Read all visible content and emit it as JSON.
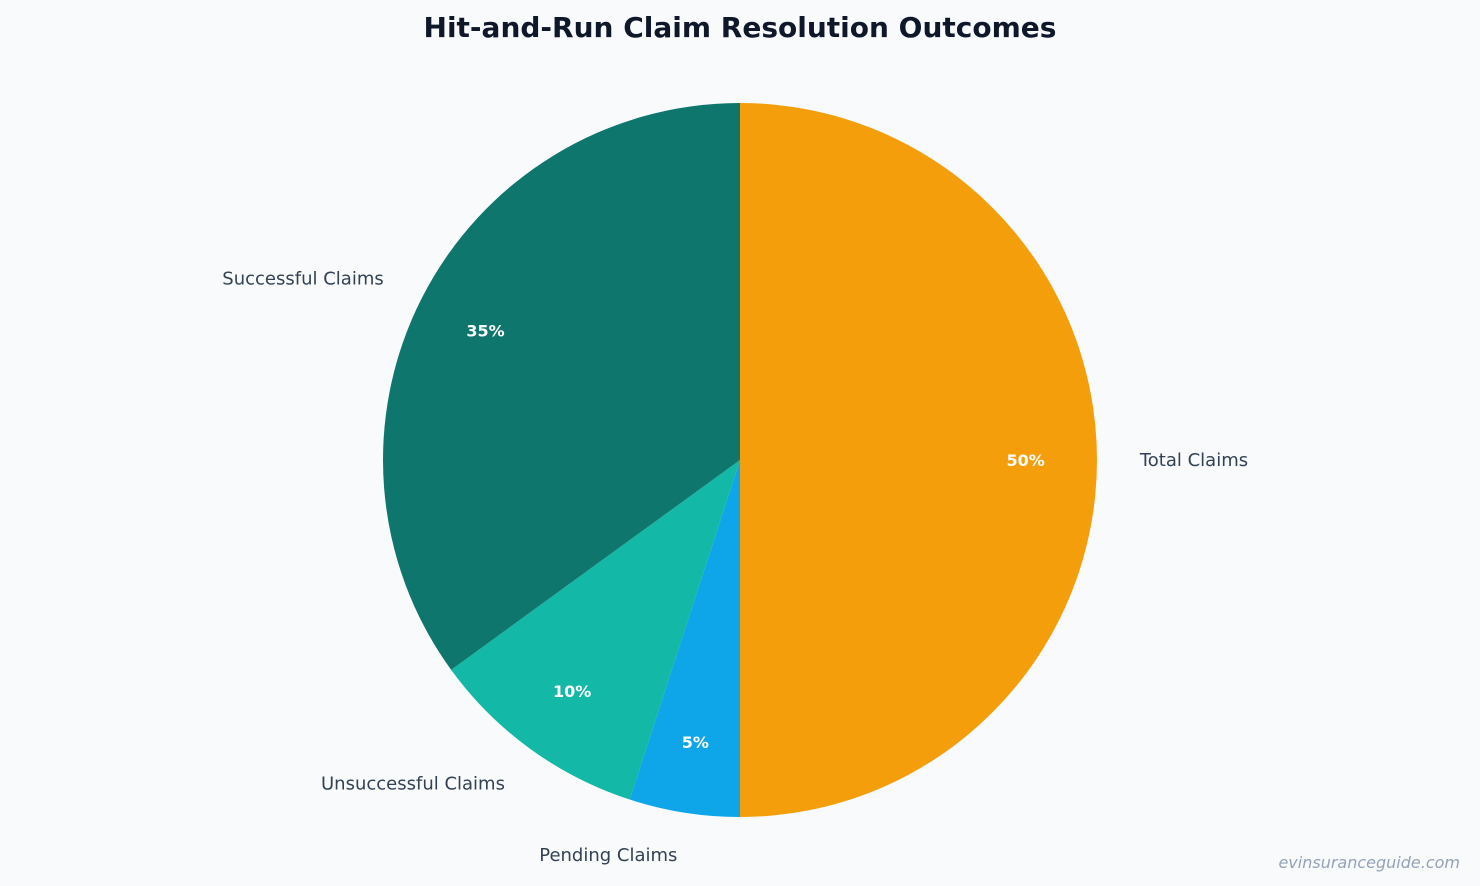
{
  "chart_data": {
    "type": "pie",
    "title": "Hit-and-Run Claim Resolution Outcomes",
    "slices": [
      {
        "label": "Total Claims",
        "value": 50,
        "value_label": "50%",
        "color": "#f59e0b"
      },
      {
        "label": "Pending Claims",
        "value": 5,
        "value_label": "5%",
        "color": "#0ea5e9"
      },
      {
        "label": "Unsuccessful Claims",
        "value": 10,
        "value_label": "10%",
        "color": "#14b8a6"
      },
      {
        "label": "Successful Claims",
        "value": 35,
        "value_label": "35%",
        "color": "#0f766e"
      }
    ],
    "start_angle": "12 o'clock",
    "direction": "clockwise"
  },
  "watermark": "evinsuranceguide.com",
  "colors": {
    "background": "#f8fafc",
    "title": "#0f172a",
    "label": "#334155",
    "watermark": "#94a3b8"
  }
}
